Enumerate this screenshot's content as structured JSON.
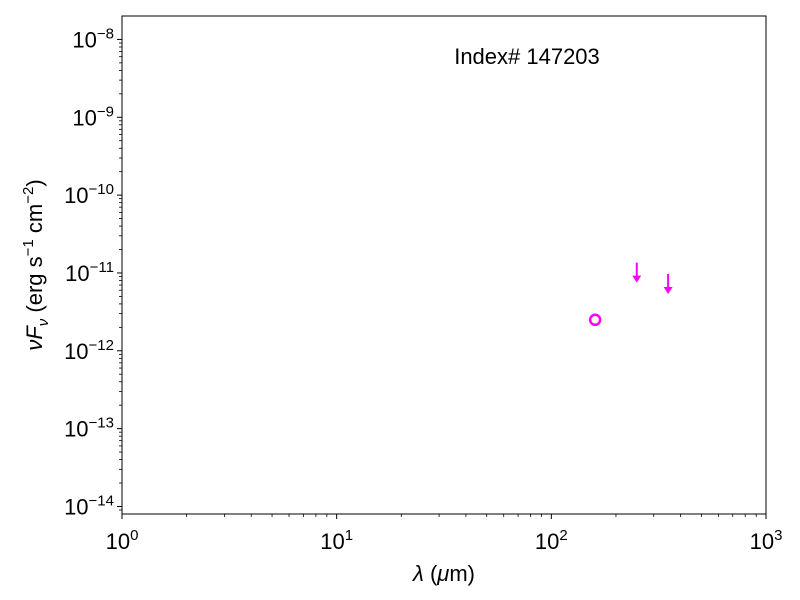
{
  "chart_data": {
    "type": "scatter",
    "title": "",
    "annotation": "Index# 147203",
    "xlabel": "λ (μm)",
    "ylabel": "νF_ν (erg s^-1 cm^-2)",
    "x_scale": "log",
    "y_scale": "log",
    "xlim": [
      1,
      1000
    ],
    "ylim": [
      8e-15,
      2e-08
    ],
    "grid": false,
    "x_ticks": [
      {
        "value": 1,
        "base": "10",
        "exp": "0"
      },
      {
        "value": 10,
        "base": "10",
        "exp": "1"
      },
      {
        "value": 100,
        "base": "10",
        "exp": "2"
      },
      {
        "value": 1000,
        "base": "10",
        "exp": "3"
      }
    ],
    "y_ticks": [
      {
        "value": 1e-14,
        "base": "10",
        "exp": "−14"
      },
      {
        "value": 1e-13,
        "base": "10",
        "exp": "−13"
      },
      {
        "value": 1e-12,
        "base": "10",
        "exp": "−12"
      },
      {
        "value": 1e-11,
        "base": "10",
        "exp": "−11"
      },
      {
        "value": 1e-10,
        "base": "10",
        "exp": "−10"
      },
      {
        "value": 1e-09,
        "base": "10",
        "exp": "−9"
      },
      {
        "value": 1e-08,
        "base": "10",
        "exp": "−8"
      }
    ],
    "series": [
      {
        "marker": "open-circle",
        "color": "#ff00ff",
        "points": [
          {
            "x": 160,
            "y": 2.5e-12
          }
        ]
      },
      {
        "marker": "upper-limit-arrow",
        "color": "#ff00ff",
        "points": [
          {
            "x": 250,
            "y": 9.5e-12
          },
          {
            "x": 350,
            "y": 6.8e-12
          }
        ]
      }
    ]
  }
}
